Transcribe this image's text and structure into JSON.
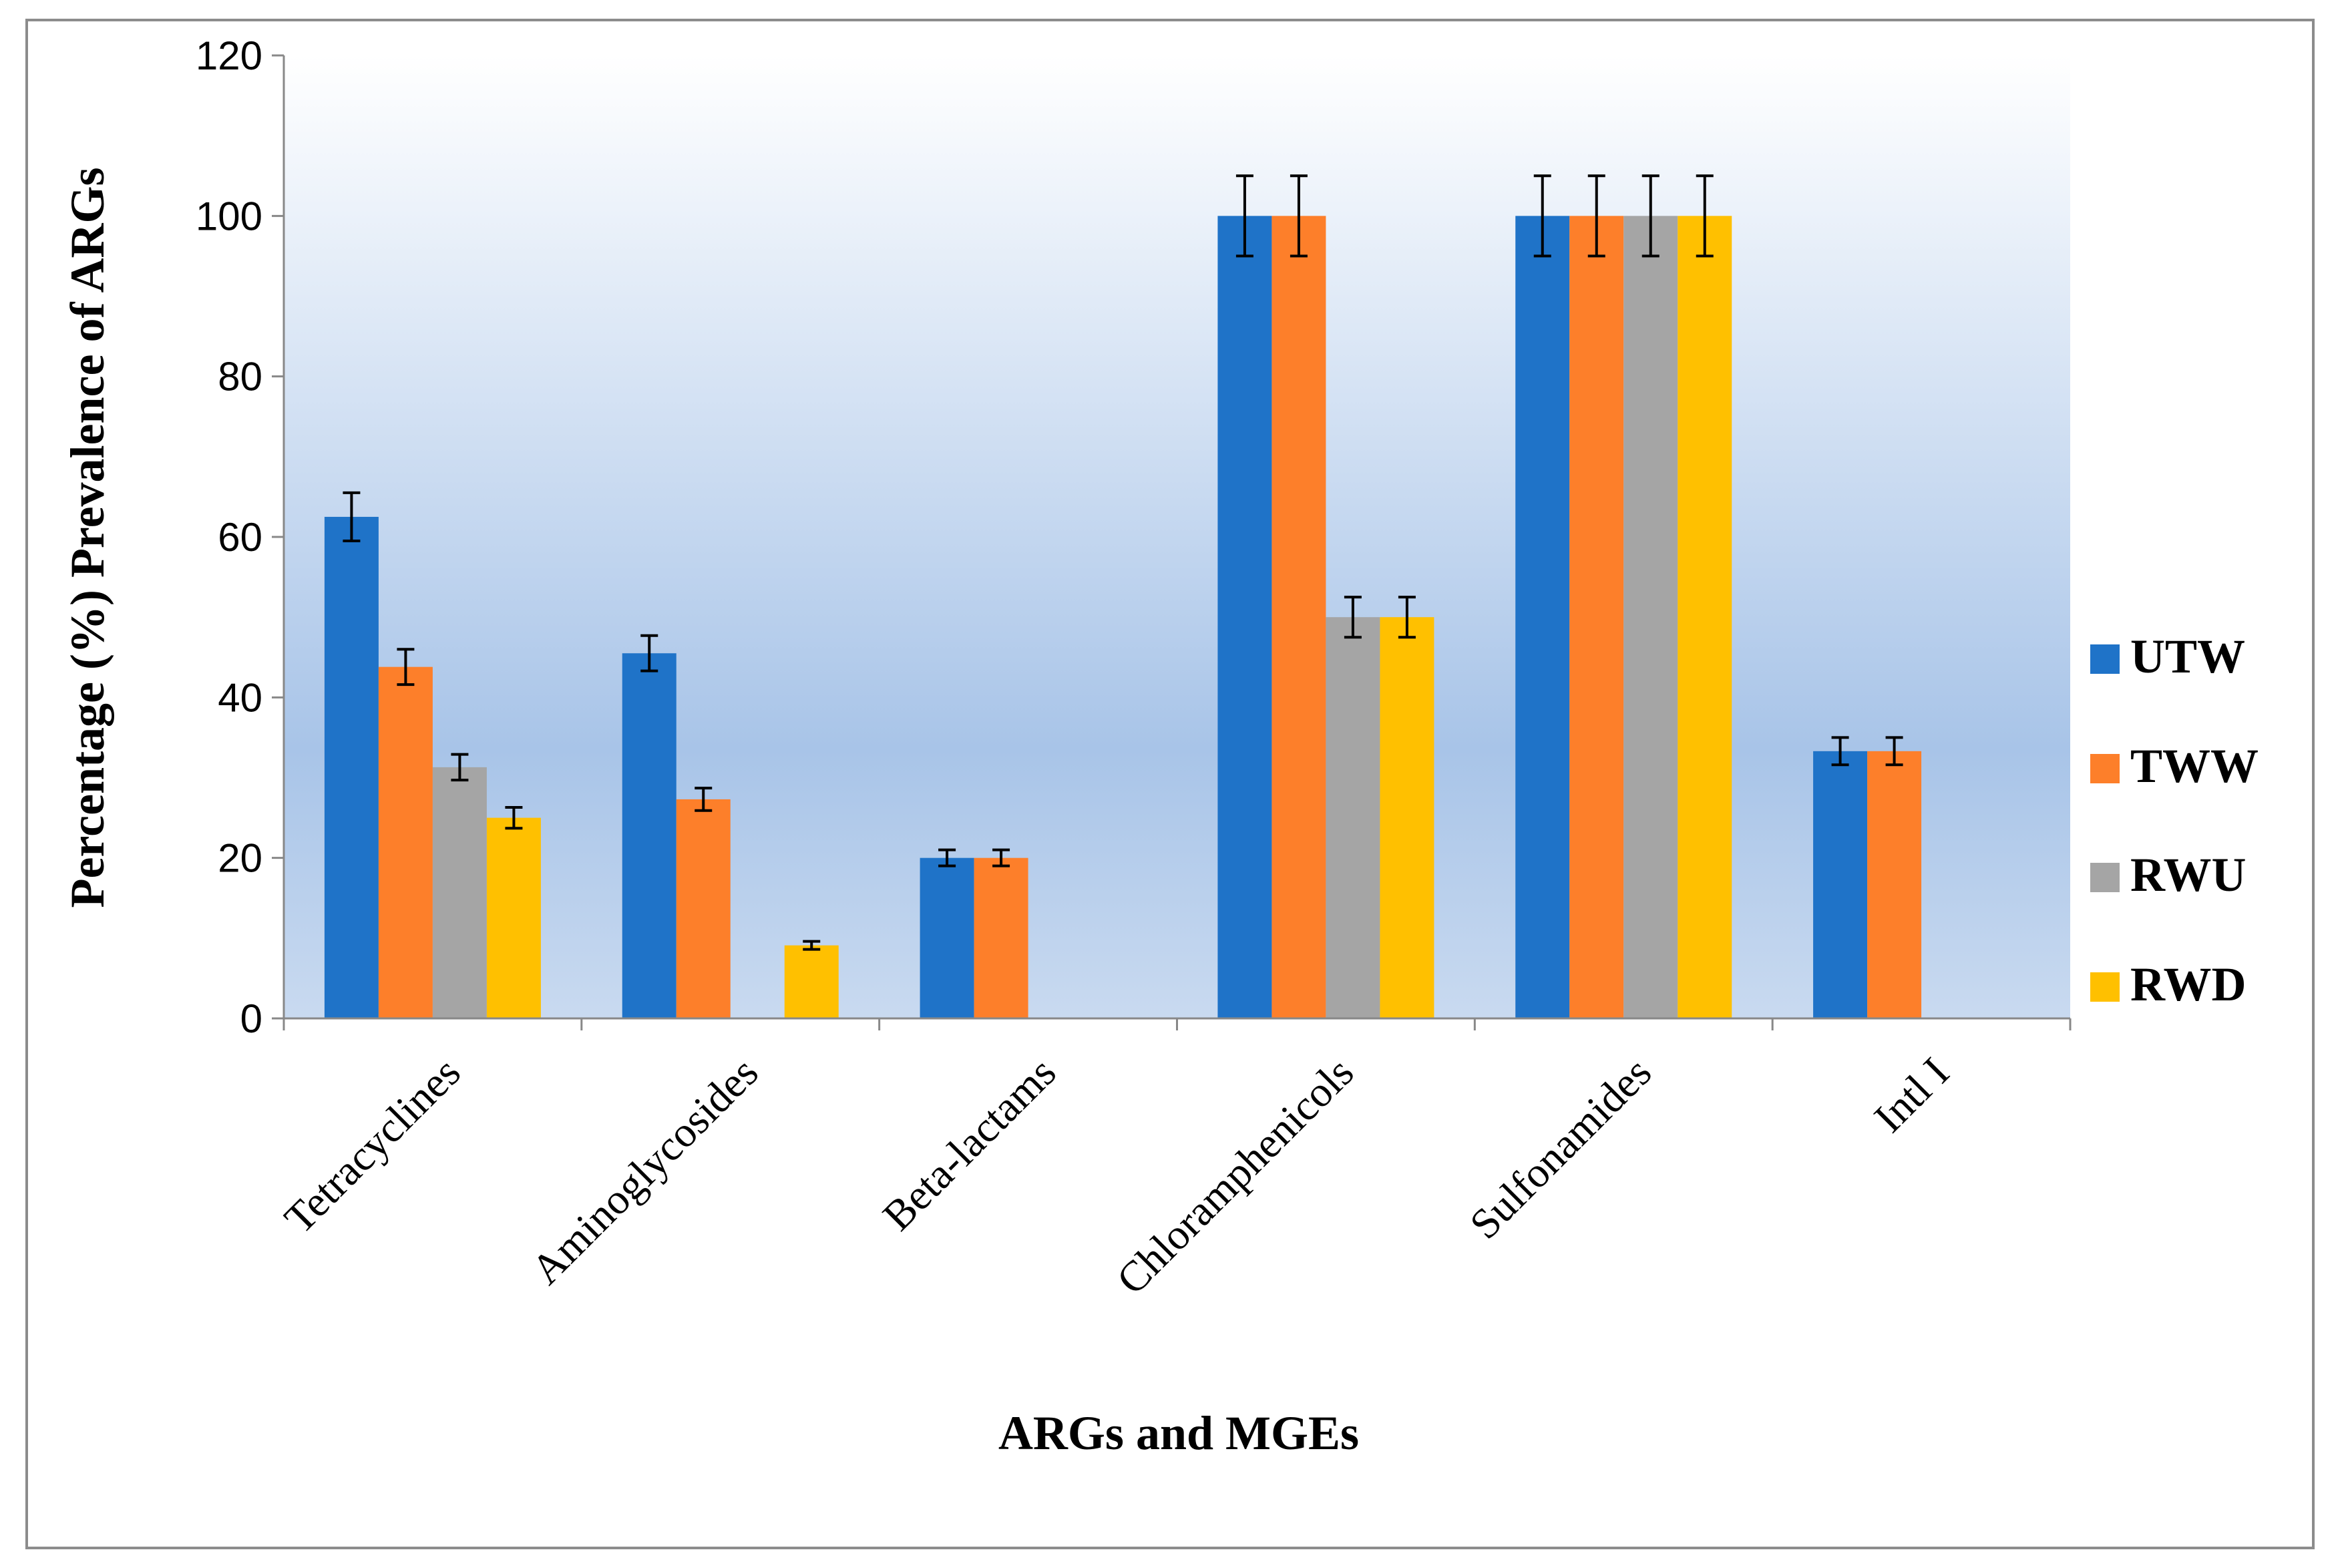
{
  "chart_data": {
    "type": "bar",
    "title": "",
    "xlabel": "ARGs and MGEs",
    "ylabel": "Percentage (%) Prevalence of ARGs",
    "ylim": [
      0,
      120
    ],
    "yticks": [
      0,
      20,
      40,
      60,
      80,
      100,
      120
    ],
    "categories": [
      "Tetracyclines",
      "Aminoglycosides",
      "Beta-lactams",
      "Chloramphenicols",
      "Sulfonamides",
      "Intl I"
    ],
    "series": [
      {
        "name": "UTW",
        "color": "#1F73C8",
        "values": [
          62.5,
          45.5,
          20,
          100,
          100,
          33.3
        ],
        "errors": [
          3,
          2.2,
          1,
          5,
          5,
          1.7
        ]
      },
      {
        "name": "TWW",
        "color": "#FD7F2A",
        "values": [
          43.8,
          27.3,
          20,
          100,
          100,
          33.3
        ],
        "errors": [
          2.2,
          1.4,
          1,
          5,
          5,
          1.7
        ]
      },
      {
        "name": "RWU",
        "color": "#A5A5A5",
        "values": [
          31.3,
          null,
          null,
          50,
          100,
          null
        ],
        "errors": [
          1.6,
          null,
          null,
          2.5,
          5,
          null
        ]
      },
      {
        "name": "RWD",
        "color": "#FFC000",
        "values": [
          25,
          9.1,
          null,
          50,
          100,
          null
        ],
        "errors": [
          1.3,
          0.5,
          null,
          2.5,
          5,
          null
        ]
      }
    ],
    "error_bars": true,
    "legend_position": "right",
    "grid": false
  }
}
